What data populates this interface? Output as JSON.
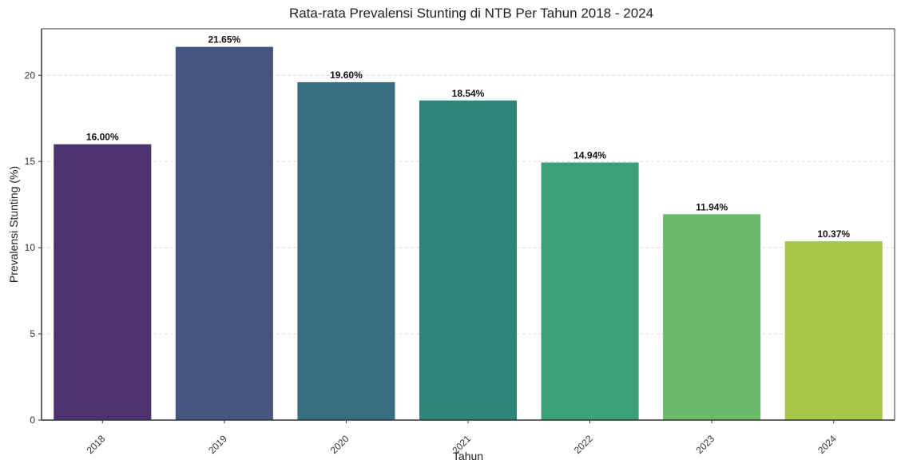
{
  "chart_data": {
    "type": "bar",
    "title": "Rata-rata Prevalensi Stunting di NTB Per Tahun 2018 - 2024",
    "xlabel": "Tahun",
    "ylabel": "Prevalensi Stunting (%)",
    "categories": [
      "2018",
      "2019",
      "2020",
      "2021",
      "2022",
      "2023",
      "2024"
    ],
    "values": [
      16.0,
      21.65,
      19.6,
      18.54,
      14.94,
      11.94,
      10.37
    ],
    "data_labels": [
      "16.00%",
      "21.65%",
      "19.60%",
      "18.54%",
      "14.94%",
      "11.94%",
      "10.37%"
    ],
    "ylim": [
      0,
      22.7
    ],
    "yticks": [
      0,
      5,
      10,
      15,
      20
    ],
    "ytick_labels": [
      "0",
      "5",
      "10",
      "15",
      "20"
    ],
    "grid": "horizontal-dashed",
    "legend": "none",
    "colors": [
      "#4a336f",
      "#44557e",
      "#386c7f",
      "#2e867b",
      "#3aa07a",
      "#69ba6a",
      "#a5c648"
    ]
  }
}
